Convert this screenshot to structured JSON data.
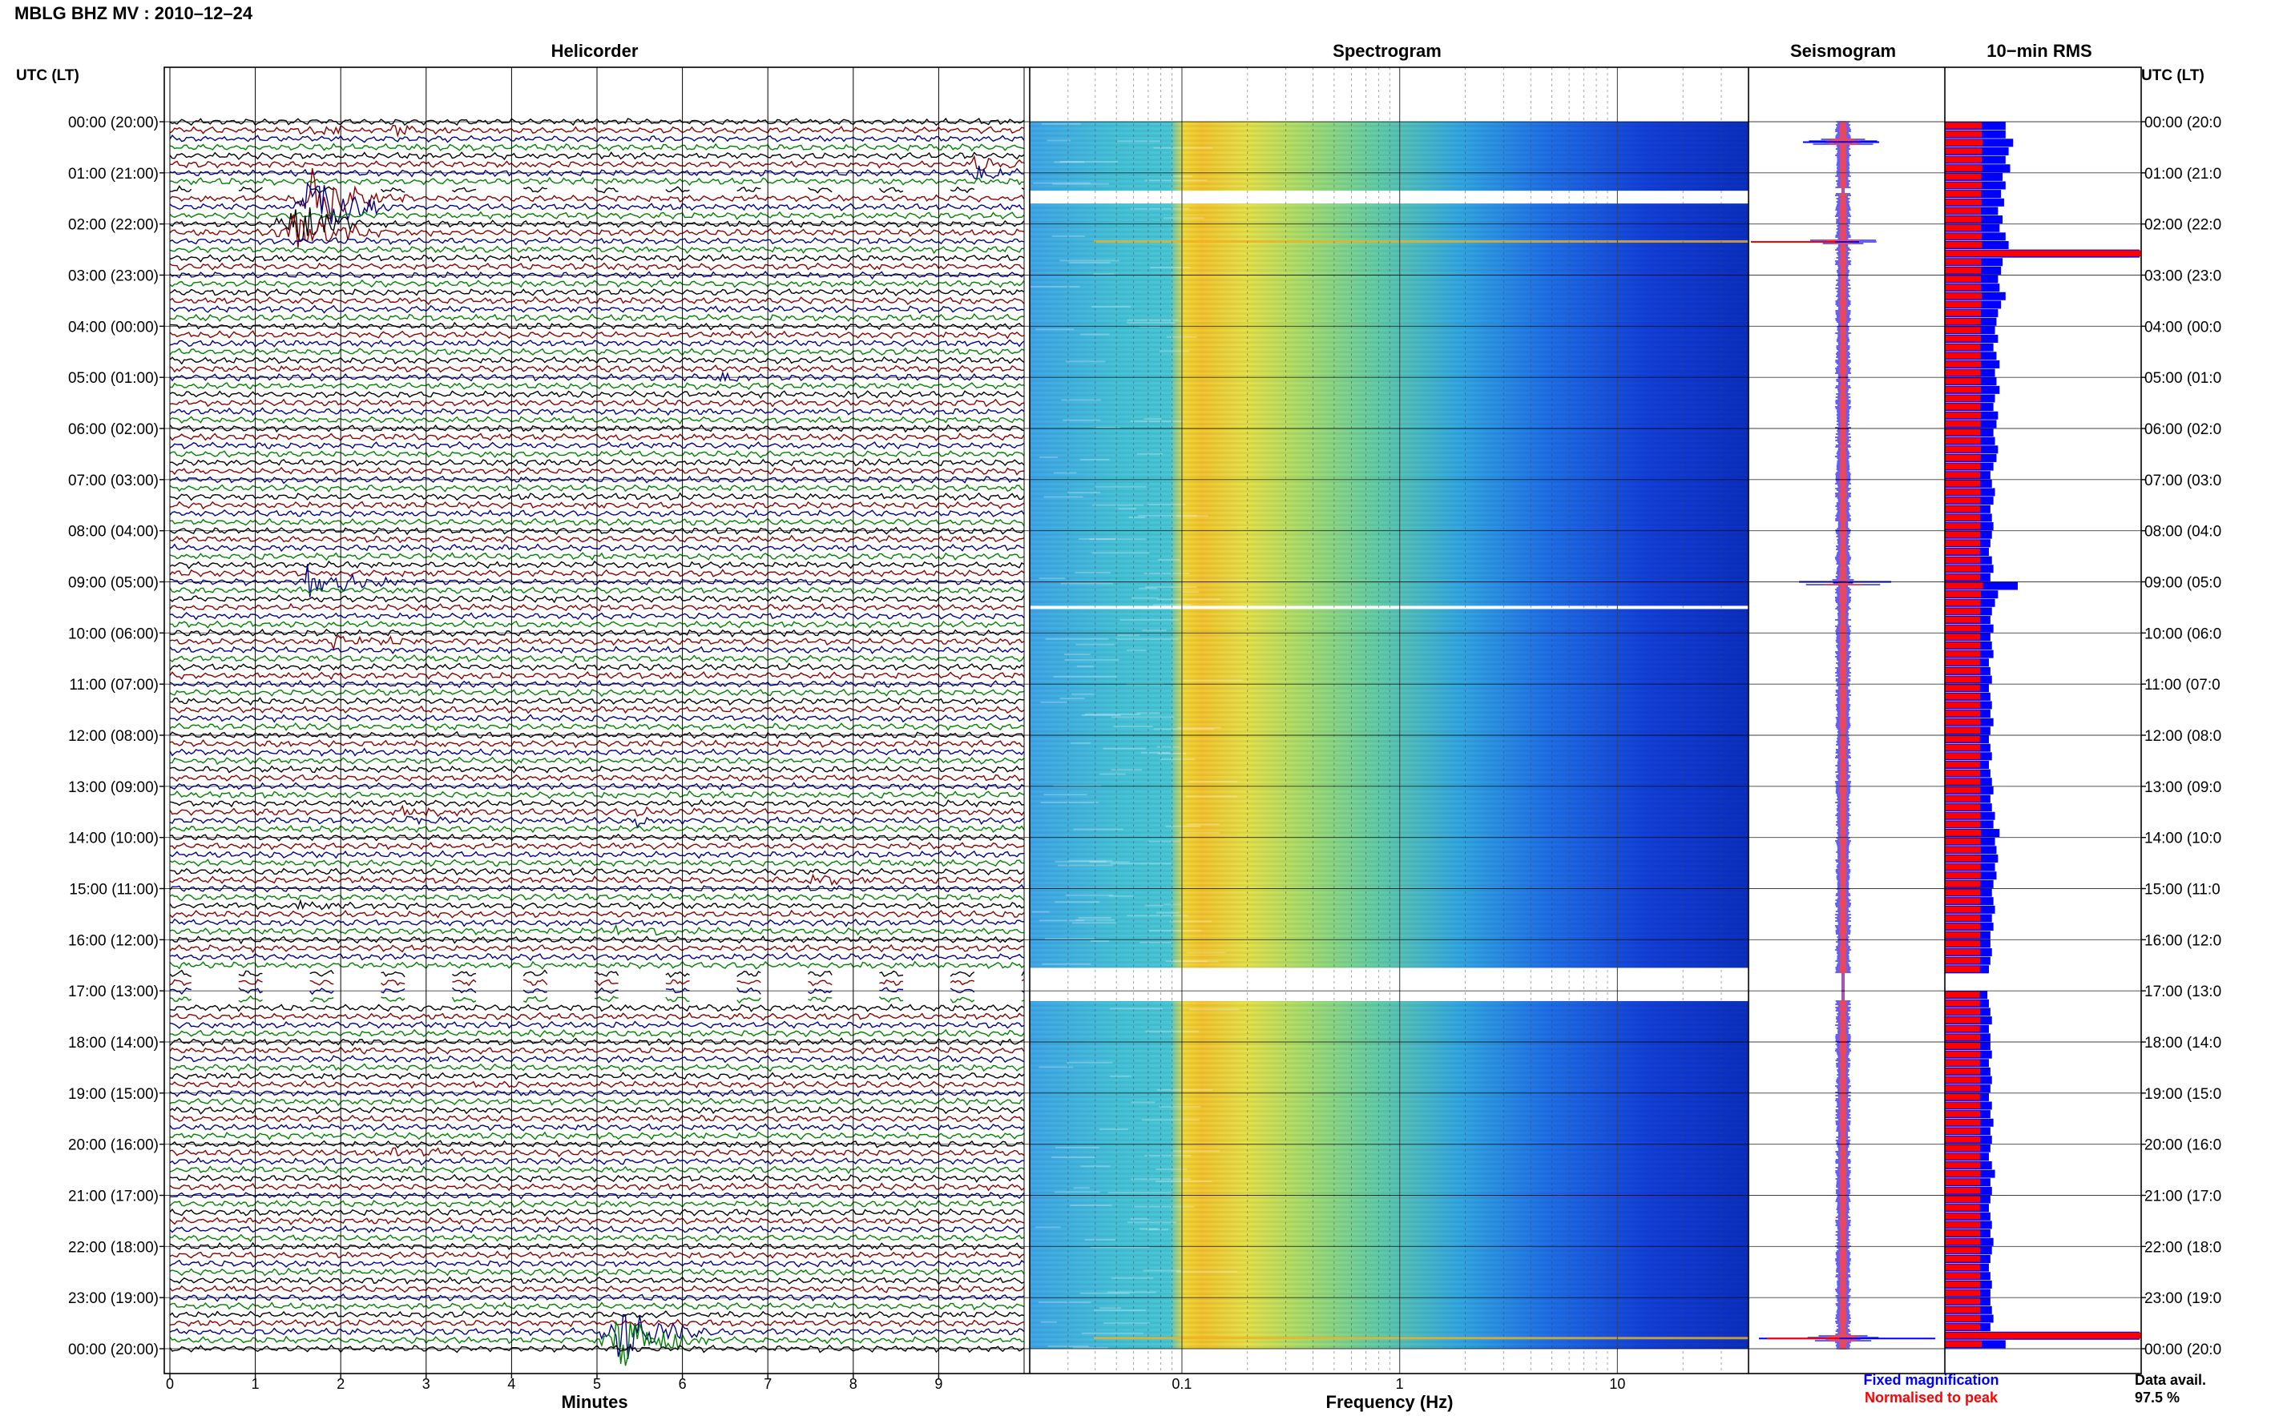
{
  "header": {
    "station_title": "MBLG BHZ MV : 2010–12–24",
    "utc_label_left": "UTC (LT)",
    "utc_label_right": "UTC (LT)"
  },
  "panels": {
    "helicorder": "Helicorder",
    "spectrogram": "Spectrogram",
    "seismogram": "Seismogram",
    "rms": "10−min RMS"
  },
  "axes": {
    "minutes_label": "Minutes",
    "minutes_ticks": [
      "0",
      "1",
      "2",
      "3",
      "4",
      "5",
      "6",
      "7",
      "8",
      "9"
    ],
    "frequency_label": "Frequency (Hz)",
    "frequency_ticks": [
      "0.1",
      "1",
      "10"
    ]
  },
  "time_labels": [
    "00:00 (20:00)",
    "01:00 (21:00)",
    "02:00 (22:00)",
    "03:00 (23:00)",
    "04:00 (00:00)",
    "05:00 (01:00)",
    "06:00 (02:00)",
    "07:00 (03:00)",
    "08:00 (04:00)",
    "09:00 (05:00)",
    "10:00 (06:00)",
    "11:00 (07:00)",
    "12:00 (08:00)",
    "13:00 (09:00)",
    "14:00 (10:00)",
    "15:00 (11:00)",
    "16:00 (12:00)",
    "17:00 (13:00)",
    "18:00 (14:00)",
    "19:00 (15:00)",
    "20:00 (16:00)",
    "21:00 (17:00)",
    "22:00 (18:00)",
    "23:00 (19:00)",
    "00:00 (20:00)"
  ],
  "time_labels_right": [
    "00:00 (20:0",
    "01:00 (21:0",
    "02:00 (22:0",
    "03:00 (23:0",
    "04:00 (00:0",
    "05:00 (01:0",
    "06:00 (02:0",
    "07:00 (03:0",
    "08:00 (04:0",
    "09:00 (05:0",
    "10:00 (06:0",
    "11:00 (07:0",
    "12:00 (08:0",
    "13:00 (09:0",
    "14:00 (10:0",
    "15:00 (11:0",
    "16:00 (12:0",
    "17:00 (13:0",
    "18:00 (14:0",
    "19:00 (15:0",
    "20:00 (16:0",
    "21:00 (17:0",
    "22:00 (18:0",
    "23:00 (19:0",
    "00:00 (20:0"
  ],
  "legend": {
    "fixed": "Fixed magnification",
    "normalised": "Normalised to peak",
    "fixed_color": "#0000ff",
    "normalised_color": "#ff0000"
  },
  "availability": {
    "label": "Data avail.",
    "value": "97.5 %"
  },
  "colors": {
    "trace_cycle": [
      "#000000",
      "#8b0000",
      "#00008b",
      "#008000"
    ],
    "rms_fixed": "#0000ff",
    "rms_normalised": "#ff0000"
  },
  "chart_data": {
    "type": "heatmap",
    "title": "MBLG BHZ MV : 2010–12–24",
    "helicorder": {
      "xlabel": "Minutes",
      "xlim": [
        0,
        10
      ],
      "ylim_hours": [
        0,
        24
      ],
      "lines_per_hour": 6,
      "events": [
        {
          "hour": 0.15,
          "minute": 1.6,
          "amp": 0.6,
          "color": "#00008b"
        },
        {
          "hour": 0.2,
          "minute": 2.6,
          "amp": 0.4,
          "color": "#00008b"
        },
        {
          "hour": 0.9,
          "minute": 9.4,
          "amp": 0.7,
          "color": "#8b0000"
        },
        {
          "hour": 1.55,
          "minute": 1.6,
          "amp": 3.0,
          "color": "#00008b"
        },
        {
          "hour": 2.1,
          "minute": 1.4,
          "amp": 2.2,
          "color": "#00008b"
        },
        {
          "hour": 5.0,
          "minute": 6.3,
          "amp": 0.6,
          "color": "#00008b"
        },
        {
          "hour": 9.0,
          "minute": 1.6,
          "amp": 1.5,
          "color": "#00008b"
        },
        {
          "hour": 10.2,
          "minute": 1.9,
          "amp": 0.6,
          "color": "#8b0000"
        },
        {
          "hour": 13.55,
          "minute": 2.7,
          "amp": 0.5,
          "color": "#00008b"
        },
        {
          "hour": 13.55,
          "minute": 5.4,
          "amp": 0.5,
          "color": "#00008b"
        },
        {
          "hour": 14.8,
          "minute": 7.4,
          "amp": 0.5,
          "color": "#000000"
        },
        {
          "hour": 15.3,
          "minute": 1.3,
          "amp": 0.6,
          "color": "#000000"
        },
        {
          "hour": 15.8,
          "minute": 5.2,
          "amp": 0.5,
          "color": "#008000"
        },
        {
          "hour": 20.2,
          "minute": 2.6,
          "amp": 0.6,
          "color": "#8b0000"
        },
        {
          "hour": 23.75,
          "minute": 5.2,
          "amp": 3.2,
          "color": "#00008b"
        }
      ],
      "gaps_hours": [
        [
          1.2,
          1.4
        ],
        [
          16.55,
          17.2
        ]
      ]
    },
    "spectrogram": {
      "xlabel": "Frequency (Hz)",
      "xscale": "log",
      "xlim": [
        0.02,
        40
      ],
      "xticks": [
        0.1,
        1,
        10
      ],
      "peak_band_hz": [
        0.13,
        0.3
      ],
      "gaps_hours": [
        [
          1.35,
          1.6
        ],
        [
          16.55,
          17.2
        ]
      ],
      "white_lines_hours": [
        9.5
      ]
    },
    "seismogram": {
      "series": [
        "Fixed magnification",
        "Normalised to peak"
      ],
      "events_hours": [
        0.4,
        2.35,
        9.0,
        23.8
      ]
    },
    "rms_10min": {
      "title": "10−min RMS",
      "fixed": [
        0.4,
        0.4,
        0.45,
        0.42,
        0.4,
        0.43,
        0.38,
        0.4,
        0.37,
        0.39,
        0.35,
        0.38,
        0.36,
        0.4,
        0.42,
        1.0,
        0.38,
        0.37,
        0.35,
        0.36,
        0.4,
        0.37,
        0.35,
        0.34,
        0.33,
        0.35,
        0.32,
        0.34,
        0.36,
        0.33,
        0.34,
        0.36,
        0.33,
        0.32,
        0.35,
        0.34,
        0.32,
        0.33,
        0.35,
        0.34,
        0.32,
        0.3,
        0.31,
        0.33,
        0.32,
        0.3,
        0.31,
        0.32,
        0.31,
        0.3,
        0.29,
        0.31,
        0.32,
        0.3,
        0.48,
        0.35,
        0.33,
        0.31,
        0.3,
        0.32,
        0.3,
        0.31,
        0.32,
        0.29,
        0.3,
        0.31,
        0.29,
        0.3,
        0.31,
        0.3,
        0.32,
        0.3,
        0.29,
        0.3,
        0.31,
        0.29,
        0.3,
        0.31,
        0.32,
        0.3,
        0.31,
        0.33,
        0.32,
        0.36,
        0.33,
        0.34,
        0.35,
        0.33,
        0.34,
        0.32,
        0.31,
        0.32,
        0.33,
        0.31,
        0.32,
        0.3,
        0.3,
        0.31,
        0.3,
        0.29,
        0.0,
        0.0,
        0.28,
        0.29,
        0.3,
        0.31,
        0.29,
        0.3,
        0.3,
        0.31,
        0.29,
        0.3,
        0.31,
        0.3,
        0.29,
        0.31,
        0.3,
        0.32,
        0.3,
        0.31,
        0.3,
        0.29,
        0.31,
        0.33,
        0.3,
        0.31,
        0.3,
        0.29,
        0.3,
        0.31,
        0.3,
        0.32,
        0.31,
        0.3,
        0.29,
        0.3,
        0.31,
        0.3,
        0.3,
        0.31,
        0.32,
        0.3,
        1.0,
        0.4
      ]
    }
  }
}
